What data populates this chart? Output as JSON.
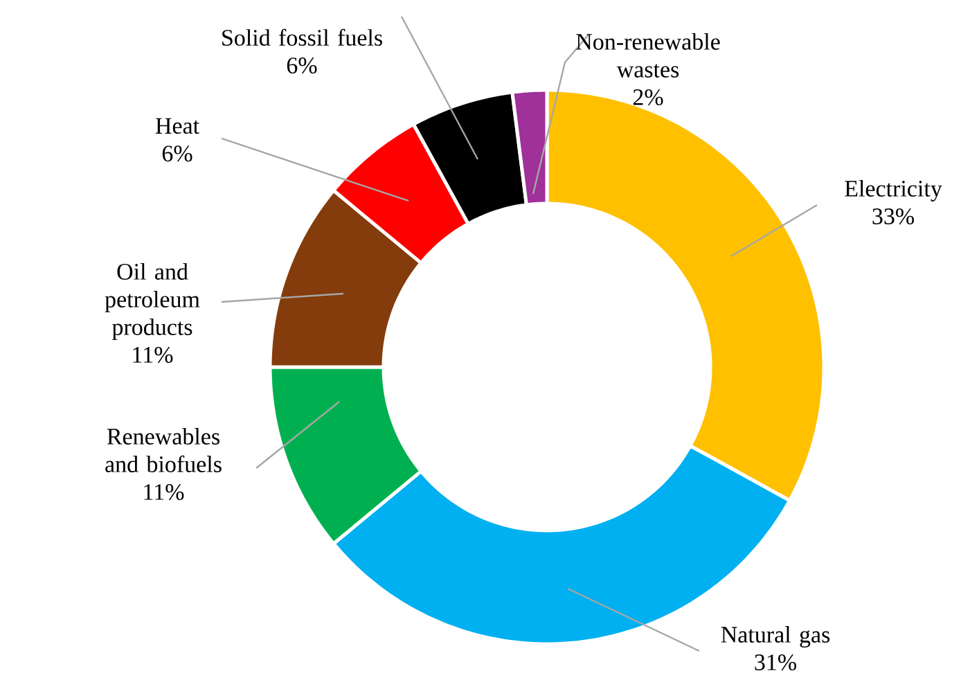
{
  "chart_data": {
    "type": "donut",
    "categories": [
      "Electricity",
      "Natural gas",
      "Renewables and biofuels",
      "Oil and petroleum products",
      "Heat",
      "Solid fossil fuels",
      "Non-renewable wastes"
    ],
    "values": [
      33,
      31,
      11,
      11,
      6,
      6,
      2
    ],
    "value_labels": [
      "33%",
      "31%",
      "11%",
      "11%",
      "6%",
      "6%",
      "2%"
    ],
    "colors": [
      "#ffc000",
      "#00b0f0",
      "#00b050",
      "#843c0c",
      "#ff0000",
      "#000000",
      "#a0309a"
    ]
  }
}
